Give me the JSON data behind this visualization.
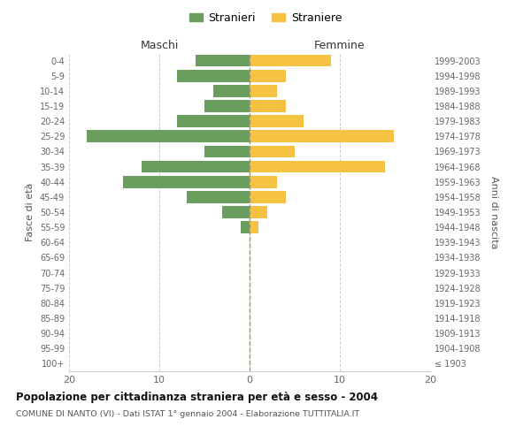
{
  "age_groups": [
    "100+",
    "95-99",
    "90-94",
    "85-89",
    "80-84",
    "75-79",
    "70-74",
    "65-69",
    "60-64",
    "55-59",
    "50-54",
    "45-49",
    "40-44",
    "35-39",
    "30-34",
    "25-29",
    "20-24",
    "15-19",
    "10-14",
    "5-9",
    "0-4"
  ],
  "birth_years": [
    "≤ 1903",
    "1904-1908",
    "1909-1913",
    "1914-1918",
    "1919-1923",
    "1924-1928",
    "1929-1933",
    "1934-1938",
    "1939-1943",
    "1944-1948",
    "1949-1953",
    "1954-1958",
    "1959-1963",
    "1964-1968",
    "1969-1973",
    "1974-1978",
    "1979-1983",
    "1984-1988",
    "1989-1993",
    "1994-1998",
    "1999-2003"
  ],
  "maschi": [
    0,
    0,
    0,
    0,
    0,
    0,
    0,
    0,
    0,
    1,
    3,
    7,
    14,
    12,
    5,
    18,
    8,
    5,
    4,
    8,
    6
  ],
  "femmine": [
    0,
    0,
    0,
    0,
    0,
    0,
    0,
    0,
    0,
    1,
    2,
    4,
    3,
    15,
    5,
    16,
    6,
    4,
    3,
    4,
    9
  ],
  "color_maschi": "#6a9e5e",
  "color_femmine": "#f5c242",
  "title": "Popolazione per cittadinanza straniera per età e sesso - 2004",
  "subtitle": "COMUNE DI NANTO (VI) - Dati ISTAT 1° gennaio 2004 - Elaborazione TUTTITALIA.IT",
  "xlabel_left": "Maschi",
  "xlabel_right": "Femmine",
  "ylabel_left": "Fasce di età",
  "ylabel_right": "Anni di nascita",
  "legend_maschi": "Stranieri",
  "legend_femmine": "Straniere",
  "xlim": 20,
  "background_color": "#ffffff",
  "grid_color": "#cccccc",
  "bar_height": 0.8
}
